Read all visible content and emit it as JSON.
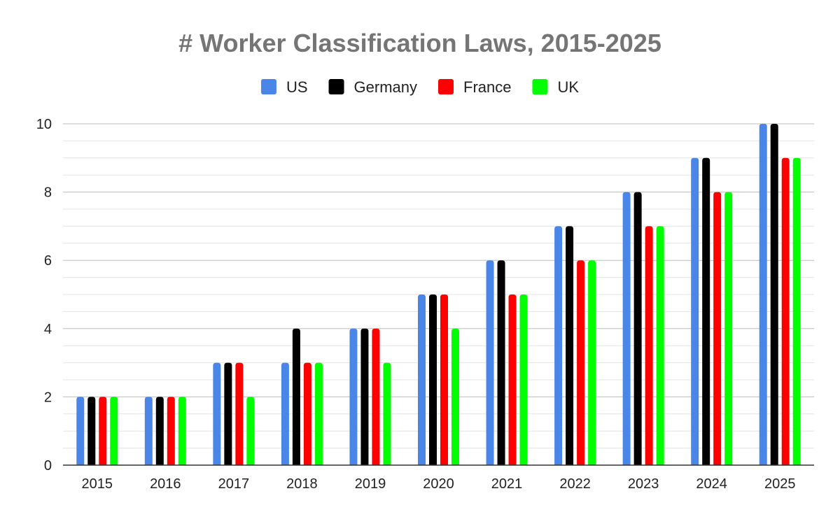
{
  "chart_data": {
    "type": "bar",
    "title": "# Worker Classification Laws, 2015-2025",
    "xlabel": "",
    "ylabel": "",
    "categories": [
      "2015",
      "2016",
      "2017",
      "2018",
      "2019",
      "2020",
      "2021",
      "2022",
      "2023",
      "2024",
      "2025"
    ],
    "series": [
      {
        "name": "US",
        "color": "#4a86e8",
        "values": [
          2,
          2,
          3,
          3,
          4,
          5,
          6,
          7,
          8,
          9,
          10
        ]
      },
      {
        "name": "Germany",
        "color": "#000000",
        "values": [
          2,
          2,
          3,
          4,
          4,
          5,
          6,
          7,
          8,
          9,
          10
        ]
      },
      {
        "name": "France",
        "color": "#ff0000",
        "values": [
          2,
          2,
          3,
          3,
          4,
          5,
          5,
          6,
          7,
          8,
          9
        ]
      },
      {
        "name": "UK",
        "color": "#00ff00",
        "values": [
          2,
          2,
          2,
          3,
          3,
          4,
          5,
          6,
          7,
          8,
          9
        ]
      }
    ],
    "ylim": [
      0,
      10
    ],
    "yticks": [
      0,
      2,
      4,
      6,
      8,
      10
    ],
    "grid": true,
    "legend_position": "top"
  }
}
